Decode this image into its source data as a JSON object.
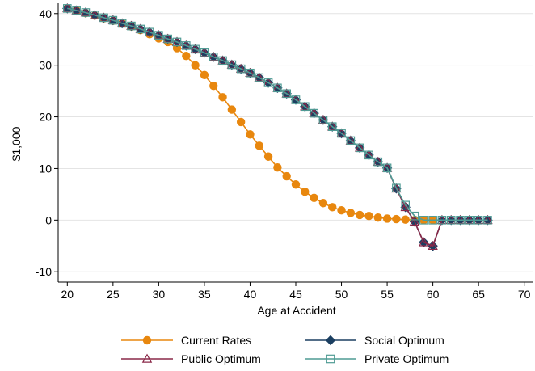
{
  "chart_data": {
    "type": "line",
    "title": "",
    "xlabel": "Age at Accident",
    "ylabel": "$1,000",
    "xlim": [
      19,
      71
    ],
    "ylim": [
      -12,
      42
    ],
    "xticks": [
      20,
      25,
      30,
      35,
      40,
      45,
      50,
      55,
      60,
      65,
      70
    ],
    "yticks": [
      -10,
      0,
      10,
      20,
      30,
      40
    ],
    "grid": "horizontal",
    "legend_position": "bottom",
    "series": [
      {
        "name": "Current Rates",
        "color": "#e8870e",
        "marker": "circle",
        "x": [
          20,
          21,
          22,
          23,
          24,
          25,
          26,
          27,
          28,
          29,
          30,
          31,
          32,
          33,
          34,
          35,
          36,
          37,
          38,
          39,
          40,
          41,
          42,
          43,
          44,
          45,
          46,
          47,
          48,
          49,
          50,
          51,
          52,
          53,
          54,
          55,
          56,
          57,
          58,
          59,
          60
        ],
        "y": [
          41.0,
          40.6,
          40.1,
          39.6,
          39.1,
          38.6,
          38.1,
          37.5,
          36.8,
          36.0,
          35.2,
          34.5,
          33.3,
          31.8,
          30.0,
          28.1,
          26.0,
          23.8,
          21.4,
          19.0,
          16.6,
          14.4,
          12.3,
          10.2,
          8.5,
          6.9,
          5.5,
          4.3,
          3.3,
          2.5,
          1.9,
          1.4,
          1.0,
          0.8,
          0.5,
          0.3,
          0.2,
          0.1,
          0.0,
          0.0,
          0.0
        ]
      },
      {
        "name": "Social Optimum",
        "color": "#1b3f61",
        "marker": "diamond",
        "x": [
          20,
          21,
          22,
          23,
          24,
          25,
          26,
          27,
          28,
          29,
          30,
          31,
          32,
          33,
          34,
          35,
          36,
          37,
          38,
          39,
          40,
          41,
          42,
          43,
          44,
          45,
          46,
          47,
          48,
          49,
          50,
          51,
          52,
          53,
          54,
          55,
          56,
          57,
          58,
          59,
          60,
          61,
          62,
          63,
          64,
          65,
          66
        ],
        "y": [
          41.0,
          40.6,
          40.2,
          39.7,
          39.2,
          38.7,
          38.1,
          37.6,
          37.0,
          36.4,
          35.8,
          35.1,
          34.5,
          33.8,
          33.1,
          32.4,
          31.6,
          30.9,
          30.1,
          29.3,
          28.5,
          27.6,
          26.6,
          25.6,
          24.5,
          23.3,
          22.0,
          20.7,
          19.4,
          18.1,
          16.8,
          15.4,
          14.0,
          12.6,
          11.3,
          10.1,
          6.1,
          2.5,
          -0.3,
          -4.3,
          -5.0,
          0.0,
          0.0,
          0.0,
          0.0,
          0.0,
          0.0
        ]
      },
      {
        "name": "Public Optimum",
        "color": "#8a2848",
        "marker": "triangle",
        "x": [
          20,
          21,
          22,
          23,
          24,
          25,
          26,
          27,
          28,
          29,
          30,
          31,
          32,
          33,
          34,
          35,
          36,
          37,
          38,
          39,
          40,
          41,
          42,
          43,
          44,
          45,
          46,
          47,
          48,
          49,
          50,
          51,
          52,
          53,
          54,
          55,
          56,
          57,
          58,
          59,
          60,
          61,
          62,
          63,
          64,
          65,
          66
        ],
        "y": [
          41.0,
          40.6,
          40.2,
          39.7,
          39.2,
          38.7,
          38.1,
          37.6,
          37.0,
          36.4,
          35.8,
          35.1,
          34.5,
          33.8,
          33.1,
          32.4,
          31.6,
          30.9,
          30.1,
          29.3,
          28.5,
          27.6,
          26.6,
          25.6,
          24.5,
          23.3,
          22.0,
          20.7,
          19.4,
          18.1,
          16.8,
          15.4,
          14.0,
          12.6,
          11.3,
          10.1,
          6.1,
          2.5,
          -0.3,
          -4.3,
          -5.0,
          0.0,
          0.0,
          0.0,
          0.0,
          0.0,
          0.0
        ]
      },
      {
        "name": "Private Optimum",
        "color": "#4f9b94",
        "marker": "square",
        "x": [
          20,
          21,
          22,
          23,
          24,
          25,
          26,
          27,
          28,
          29,
          30,
          31,
          32,
          33,
          34,
          35,
          36,
          37,
          38,
          39,
          40,
          41,
          42,
          43,
          44,
          45,
          46,
          47,
          48,
          49,
          50,
          51,
          52,
          53,
          54,
          55,
          56,
          57,
          58,
          59,
          60,
          61,
          62,
          63,
          64,
          65,
          66
        ],
        "y": [
          41.0,
          40.6,
          40.2,
          39.7,
          39.2,
          38.7,
          38.1,
          37.6,
          37.0,
          36.4,
          35.8,
          35.1,
          34.5,
          33.8,
          33.1,
          32.4,
          31.6,
          30.9,
          30.1,
          29.3,
          28.5,
          27.6,
          26.6,
          25.6,
          24.5,
          23.3,
          22.0,
          20.7,
          19.4,
          18.1,
          16.8,
          15.4,
          14.0,
          12.6,
          11.3,
          10.1,
          6.2,
          2.9,
          0.8,
          0.0,
          0.0,
          0.0,
          0.0,
          0.0,
          0.0,
          0.0,
          0.0
        ]
      }
    ],
    "legend": [
      {
        "label": "Current Rates",
        "series": 0
      },
      {
        "label": "Social Optimum",
        "series": 1
      },
      {
        "label": "Public Optimum",
        "series": 2
      },
      {
        "label": "Private Optimum",
        "series": 3
      }
    ]
  }
}
